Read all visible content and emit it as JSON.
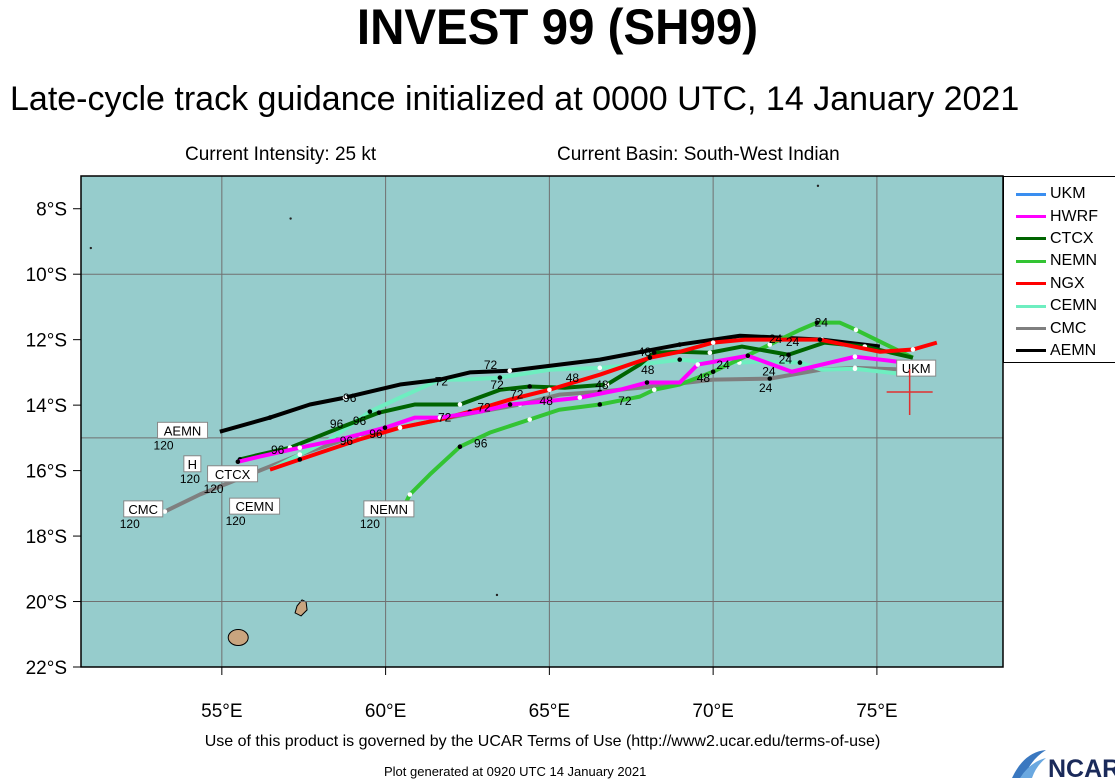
{
  "title": "INVEST 99 (SH99)",
  "subtitle": "Late-cycle track guidance initialized at 0000 UTC, 14 January 2021",
  "current_intensity": "Current Intensity: 25 kt",
  "current_basin": "Current Basin: South-West Indian",
  "footer_terms": "Use of this product is governed by the UCAR Terms of Use (http://www2.ucar.edu/terms-of-use)",
  "footer_generated": "Plot generated at 0920 UTC   14 January 2021",
  "logo_text": "NCAR",
  "chart_data": {
    "type": "map-tracks",
    "lon_range": [
      50.7,
      78.85
    ],
    "lat_range_south": [
      7.0,
      22.0
    ],
    "x_ticks": [
      "55°E",
      "60°E",
      "65°E",
      "70°E",
      "75°E"
    ],
    "x_tick_values": [
      55,
      60,
      65,
      70,
      75
    ],
    "y_ticks": [
      "8°S",
      "10°S",
      "12°S",
      "14°S",
      "16°S",
      "18°S",
      "20°S",
      "22°S"
    ],
    "y_tick_values": [
      8,
      10,
      12,
      14,
      16,
      18,
      20,
      22
    ],
    "grid_lon": [
      55,
      60,
      65,
      70,
      75
    ],
    "grid_lat": [
      10,
      15,
      20
    ],
    "ocean_color": "#96cccc",
    "land_color": "#c9a57f",
    "legend_placement": "right",
    "current_position": {
      "lon": 76.0,
      "lat": 13.6,
      "color": "#e03030"
    },
    "series": [
      {
        "name": "UKM",
        "color": "#3a8ef0",
        "points": [
          [
            76.0,
            12.9
          ],
          [
            75.9,
            13.0
          ]
        ],
        "end_label": "UKM"
      },
      {
        "name": "HWRF",
        "color": "#ff00ff",
        "points": [
          [
            75.61,
            12.67
          ],
          [
            74.33,
            12.52
          ],
          [
            72.4,
            12.98
          ],
          [
            71.06,
            12.49
          ],
          [
            70.05,
            12.67
          ],
          [
            69.53,
            12.76
          ],
          [
            68.98,
            13.31
          ],
          [
            67.98,
            13.31
          ],
          [
            67.15,
            13.53
          ],
          [
            65.93,
            13.77
          ],
          [
            64.86,
            13.89
          ],
          [
            63.8,
            13.98
          ],
          [
            62.88,
            14.2
          ],
          [
            61.66,
            14.38
          ],
          [
            60.9,
            14.38
          ],
          [
            59.98,
            14.69
          ],
          [
            58.6,
            15.05
          ],
          [
            57.38,
            15.3
          ],
          [
            56.16,
            15.57
          ],
          [
            55.49,
            15.73
          ]
        ],
        "end_label": "H"
      },
      {
        "name": "CTCX",
        "color": "#006400",
        "points": [
          [
            76.1,
            12.55
          ],
          [
            74.63,
            12.21
          ],
          [
            73.4,
            12.09
          ],
          [
            72.3,
            12.46
          ],
          [
            70.88,
            12.21
          ],
          [
            69.9,
            12.4
          ],
          [
            68.98,
            12.37
          ],
          [
            68.2,
            12.4
          ],
          [
            67.76,
            12.76
          ],
          [
            66.76,
            13.37
          ],
          [
            65.47,
            13.47
          ],
          [
            64.4,
            13.43
          ],
          [
            63.5,
            13.53
          ],
          [
            62.27,
            13.98
          ],
          [
            60.9,
            13.98
          ],
          [
            59.8,
            14.23
          ],
          [
            58.6,
            14.69
          ],
          [
            57.08,
            15.3
          ],
          [
            56.16,
            15.51
          ],
          [
            55.55,
            15.66
          ]
        ],
        "end_label": "CTCX"
      },
      {
        "name": "NEMN",
        "color": "#33c433",
        "points": [
          [
            76.1,
            12.55
          ],
          [
            74.36,
            11.7
          ],
          [
            73.87,
            11.48
          ],
          [
            73.17,
            11.48
          ],
          [
            72.65,
            11.7
          ],
          [
            71.73,
            12.15
          ],
          [
            70.97,
            12.52
          ],
          [
            70.0,
            12.98
          ],
          [
            68.98,
            13.37
          ],
          [
            68.2,
            13.53
          ],
          [
            67.76,
            13.74
          ],
          [
            66.54,
            13.98
          ],
          [
            65.3,
            14.14
          ],
          [
            64.4,
            14.44
          ],
          [
            63.18,
            14.84
          ],
          [
            62.27,
            15.27
          ],
          [
            61.35,
            16.12
          ],
          [
            60.74,
            16.73
          ],
          [
            60.59,
            17.04
          ]
        ],
        "end_label": "NEMN"
      },
      {
        "name": "NGX",
        "color": "#ff0000",
        "points": [
          [
            76.83,
            12.09
          ],
          [
            76.1,
            12.3
          ],
          [
            75.1,
            12.37
          ],
          [
            73.26,
            12.0
          ],
          [
            70.97,
            12.0
          ],
          [
            70.0,
            12.09
          ],
          [
            68.98,
            12.37
          ],
          [
            68.07,
            12.55
          ],
          [
            66.54,
            13.07
          ],
          [
            65.0,
            13.53
          ],
          [
            63.8,
            13.83
          ],
          [
            62.57,
            14.2
          ],
          [
            61.66,
            14.44
          ],
          [
            60.44,
            14.69
          ],
          [
            59.2,
            15.05
          ],
          [
            57.38,
            15.66
          ],
          [
            56.47,
            15.97
          ]
        ],
        "end_label": ""
      },
      {
        "name": "CEMN",
        "color": "#6eeec0",
        "points": [
          [
            76.0,
            13.07
          ],
          [
            74.33,
            12.89
          ],
          [
            73.32,
            12.92
          ],
          [
            72.65,
            12.7
          ],
          [
            71.43,
            12.67
          ],
          [
            70.8,
            12.7
          ],
          [
            69.6,
            12.67
          ],
          [
            68.98,
            12.61
          ],
          [
            67.76,
            12.76
          ],
          [
            66.54,
            12.86
          ],
          [
            65.0,
            12.92
          ],
          [
            63.49,
            13.16
          ],
          [
            62.42,
            13.22
          ],
          [
            61.66,
            13.22
          ],
          [
            60.44,
            13.77
          ],
          [
            59.52,
            14.2
          ],
          [
            58.3,
            15.05
          ],
          [
            57.38,
            15.51
          ],
          [
            56.47,
            15.97
          ]
        ],
        "end_label": "CEMN"
      },
      {
        "name": "CMC",
        "color": "#7f7f7f",
        "points": [
          [
            76.0,
            12.92
          ],
          [
            74.33,
            12.86
          ],
          [
            73.26,
            12.92
          ],
          [
            71.73,
            13.19
          ],
          [
            70.0,
            13.22
          ],
          [
            68.98,
            13.34
          ],
          [
            67.76,
            13.47
          ],
          [
            66.54,
            13.59
          ],
          [
            65.3,
            13.68
          ],
          [
            64.1,
            13.98
          ],
          [
            62.88,
            14.2
          ],
          [
            61.66,
            14.44
          ],
          [
            60.44,
            14.69
          ],
          [
            59.2,
            14.9
          ],
          [
            57.38,
            15.51
          ],
          [
            55.85,
            16.12
          ],
          [
            54.33,
            16.73
          ],
          [
            53.26,
            17.25
          ]
        ],
        "end_label": "CMC"
      },
      {
        "name": "AEMN",
        "color": "#000000",
        "points": [
          [
            75.09,
            12.21
          ],
          [
            73.32,
            12.0
          ],
          [
            70.82,
            11.88
          ],
          [
            68.98,
            12.15
          ],
          [
            66.54,
            12.61
          ],
          [
            63.79,
            12.95
          ],
          [
            62.57,
            13.0
          ],
          [
            61.66,
            13.22
          ],
          [
            60.44,
            13.37
          ],
          [
            58.76,
            13.77
          ],
          [
            57.69,
            13.98
          ],
          [
            56.47,
            14.38
          ],
          [
            54.94,
            14.81
          ]
        ],
        "end_label": "AEMN"
      }
    ],
    "end_labels": [
      {
        "text": "AEMN",
        "lon": 53.8,
        "lat": 14.8,
        "hour": "120"
      },
      {
        "text": "H",
        "lon": 54.1,
        "lat": 15.7,
        "hour": "120"
      },
      {
        "text": "CTCX",
        "lon": 54.9,
        "lat": 15.7,
        "hour": "120"
      },
      {
        "text": "CEMN",
        "lon": 56.0,
        "lat": 16.2,
        "hour": "120"
      },
      {
        "text": "CMC",
        "lon": 52.6,
        "lat": 17.2,
        "hour": "120"
      },
      {
        "text": "NEMN",
        "lon": 60.1,
        "lat": 17.2,
        "hour": "120"
      },
      {
        "text": "UKM",
        "lon": 76.2,
        "lat": 12.9,
        "hour": ""
      }
    ],
    "hour_labels": [
      {
        "text": "24",
        "lon": 73.1,
        "lat": 11.6
      },
      {
        "text": "24",
        "lon": 71.7,
        "lat": 12.1
      },
      {
        "text": "24",
        "lon": 72.1,
        "lat": 12.2
      },
      {
        "text": "24",
        "lon": 72.0,
        "lat": 12.6
      },
      {
        "text": "24",
        "lon": 71.5,
        "lat": 13.1
      },
      {
        "text": "24",
        "lon": 71.4,
        "lat": 13.6
      },
      {
        "text": "24",
        "lon": 70.1,
        "lat": 12.9
      },
      {
        "text": "48",
        "lon": 67.7,
        "lat": 12.5
      },
      {
        "text": "48",
        "lon": 67.8,
        "lat": 12.8
      },
      {
        "text": "48",
        "lon": 65.5,
        "lat": 13.3
      },
      {
        "text": "48",
        "lon": 69.5,
        "lat": 13.3
      },
      {
        "text": "48",
        "lon": 66.4,
        "lat": 13.5
      },
      {
        "text": "48",
        "lon": 64.7,
        "lat": 14.0
      },
      {
        "text": "72",
        "lon": 63.0,
        "lat": 12.9
      },
      {
        "text": "72",
        "lon": 63.2,
        "lat": 13.5
      },
      {
        "text": "72",
        "lon": 61.5,
        "lat": 13.4
      },
      {
        "text": "72",
        "lon": 63.8,
        "lat": 13.8
      },
      {
        "text": "72",
        "lon": 62.8,
        "lat": 14.2
      },
      {
        "text": "72",
        "lon": 61.6,
        "lat": 14.5
      },
      {
        "text": "72",
        "lon": 67.1,
        "lat": 14.0
      },
      {
        "text": "96",
        "lon": 58.7,
        "lat": 13.9
      },
      {
        "text": "96",
        "lon": 58.3,
        "lat": 14.7
      },
      {
        "text": "96",
        "lon": 59.0,
        "lat": 14.6
      },
      {
        "text": "96",
        "lon": 58.6,
        "lat": 15.1
      },
      {
        "text": "96",
        "lon": 59.5,
        "lat": 15.0
      },
      {
        "text": "96",
        "lon": 56.5,
        "lat": 15.5
      },
      {
        "text": "96",
        "lon": 62.7,
        "lat": 15.3
      }
    ]
  }
}
